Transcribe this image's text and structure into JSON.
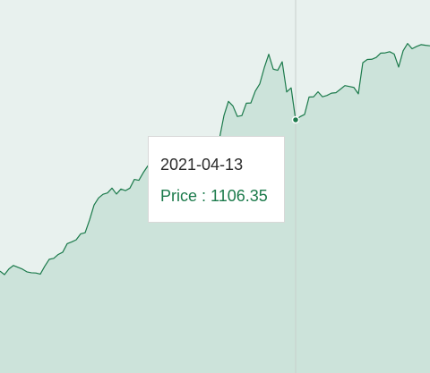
{
  "colors": {
    "line": "#1b7a4b",
    "area": "#cce3da",
    "background": "#e8f1ee",
    "crosshair": "#c9cfcc"
  },
  "tooltip": {
    "date": "2021-04-13",
    "price_label": "Price : 1106.35"
  },
  "chart_data": {
    "type": "area",
    "title": "",
    "xlabel": "",
    "ylabel": "",
    "ylim": [
      0,
      1630
    ],
    "grid": false,
    "legend": "none",
    "highlight": {
      "x": "2021-04-13",
      "y": 1106.35
    },
    "series": [
      {
        "values": [
          445,
          430,
          455,
          470,
          462,
          454,
          442,
          438,
          437,
          432,
          467,
          497,
          501,
          518,
          528,
          565,
          573,
          582,
          608,
          613,
          669,
          734,
          765,
          781,
          787,
          808,
          782,
          804,
          797,
          808,
          846,
          842,
          876,
          905,
          922,
          925,
          941,
          944,
          956,
          970,
          961,
          972,
          967,
          974,
          980,
          987,
          998,
          1002,
          1015,
          1025,
          1125,
          1187,
          1167,
          1121,
          1125,
          1179,
          1180,
          1232,
          1264,
          1334,
          1393,
          1328,
          1323,
          1360,
          1228,
          1246,
          1106,
          1120,
          1130,
          1206,
          1207,
          1229,
          1207,
          1213,
          1223,
          1225,
          1240,
          1256,
          1252,
          1248,
          1220,
          1356,
          1370,
          1371,
          1379,
          1398,
          1399,
          1404,
          1394,
          1337,
          1408,
          1440,
          1417,
          1427,
          1435,
          1432,
          1430
        ]
      }
    ]
  }
}
